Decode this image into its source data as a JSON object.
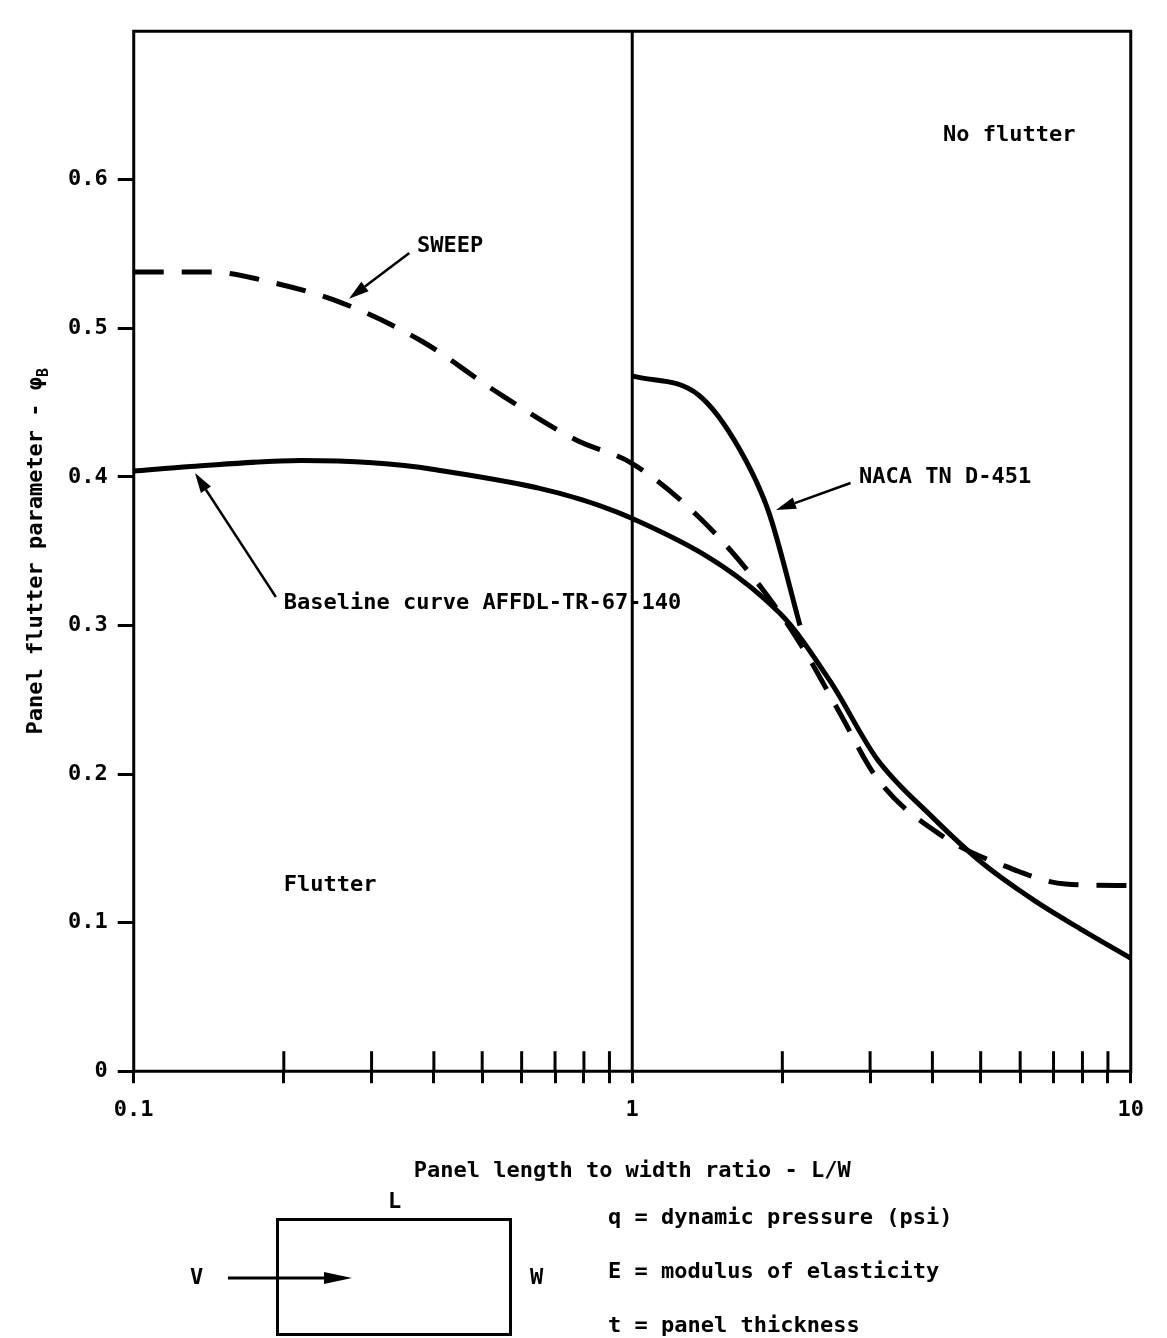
{
  "chart_data": {
    "type": "line",
    "xlabel": "Panel length to width ratio - L/W",
    "ylabel": "Panel flutter parameter - φ$_{B}$",
    "log": "x",
    "legend": false,
    "grid": false,
    "marker": "none",
    "xlim": [
      0.1,
      10
    ],
    "ylim": [
      0,
      0.7
    ],
    "xticks": [
      0.1,
      {
        "value": 0.2,
        "label": null
      },
      {
        "value": 0.3,
        "label": null
      },
      {
        "value": 0.4,
        "label": null
      },
      {
        "value": 0.5,
        "label": null
      },
      {
        "value": 0.6,
        "label": null
      },
      {
        "value": 0.7,
        "label": null
      },
      {
        "value": 0.8,
        "label": null
      },
      {
        "value": 0.9,
        "label": null
      },
      1,
      {
        "value": 2,
        "label": null
      },
      {
        "value": 3,
        "label": null
      },
      {
        "value": 4,
        "label": null
      },
      {
        "value": 5,
        "label": null
      },
      {
        "value": 6,
        "label": null
      },
      {
        "value": 7,
        "label": null
      },
      {
        "value": 8,
        "label": null
      },
      {
        "value": 9,
        "label": null
      },
      10
    ],
    "yticks": [
      0,
      0.1,
      0.2,
      0.3,
      0.4,
      0.5,
      0.6
    ],
    "ref_lines": [
      {
        "axis": "x",
        "value": 1,
        "color": "#000000"
      }
    ],
    "series": [
      {
        "name": "SWEEP",
        "color": "#000000",
        "line_style": "dashed",
        "x": [
          0.1,
          0.142,
          0.189,
          0.262,
          0.38,
          0.53,
          0.77,
          1,
          1.36,
          1.8,
          2.17,
          2.6,
          3.1,
          4.2,
          5.6,
          7.4,
          10
        ],
        "values": [
          0.538,
          0.538,
          0.531,
          0.517,
          0.491,
          0.458,
          0.425,
          0.409,
          0.373,
          0.327,
          0.288,
          0.242,
          0.197,
          0.158,
          0.138,
          0.126,
          0.125
        ]
      },
      {
        "name": "NACA TN D-451",
        "color": "#000000",
        "line_style": "solid",
        "x": [
          1,
          1.36,
          1.64,
          1.88,
          2.17
        ],
        "values": [
          0.468,
          0.455,
          0.419,
          0.376,
          0.3
        ]
      },
      {
        "name": "Baseline curve AFFDL-TR-67-140",
        "color": "#000000",
        "line_style": "solid",
        "x": [
          0.1,
          0.13,
          0.217,
          0.4,
          1,
          1.98,
          2.5,
          3.1,
          4,
          5,
          6.4,
          8,
          10
        ],
        "values": [
          0.404,
          0.407,
          0.411,
          0.405,
          0.372,
          0.308,
          0.262,
          0.21,
          0.171,
          0.141,
          0.115,
          0.095,
          0.076
        ]
      }
    ],
    "annotations": [
      "No flutter",
      "Flutter",
      "L",
      "W",
      "V",
      "q = dynamic pressure (psi)",
      "E = modulus of elasticity",
      "t = panel thickness"
    ]
  }
}
